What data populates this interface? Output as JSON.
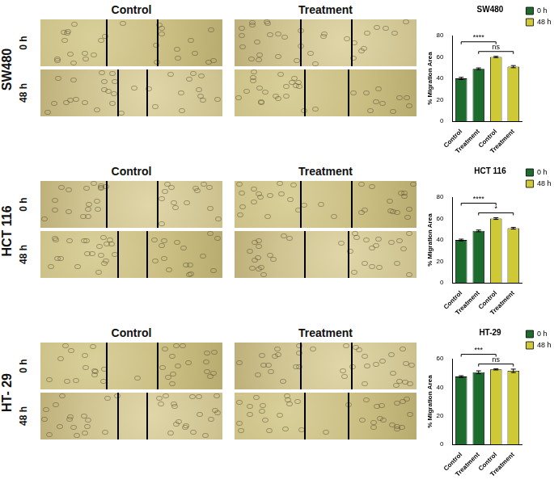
{
  "figure": {
    "panels": [
      {
        "label": "SW480",
        "columns": [
          "Control",
          "Treatment"
        ],
        "rows": [
          "0 h",
          "48 h"
        ]
      },
      {
        "label": "HCT 116",
        "columns": [
          "Control",
          "Treatment"
        ],
        "rows": [
          "0 h",
          "48 h"
        ]
      },
      {
        "label": "HT- 29",
        "columns": [
          "Control",
          "Treatment"
        ],
        "rows": [
          "0 h",
          "48 h"
        ]
      }
    ]
  },
  "chart_data": [
    {
      "type": "bar",
      "title": "SW480",
      "y_label": "% Migration Area",
      "categories": [
        "Control",
        "Treatment",
        "Control",
        "Treatment"
      ],
      "series": [
        {
          "name": "0 h",
          "color": "#1e6b2e",
          "values": [
            40,
            49,
            null,
            null
          ],
          "errors": [
            1,
            0.8,
            null,
            null
          ]
        },
        {
          "name": "48 h",
          "color": "#cfc936",
          "values": [
            null,
            null,
            60,
            51
          ],
          "errors": [
            null,
            null,
            0.6,
            1
          ]
        }
      ],
      "comparisons": [
        {
          "from": 0,
          "to": 2,
          "label": "****"
        },
        {
          "from": 1,
          "to": 3,
          "label": "ns"
        }
      ],
      "ylim": [
        0,
        80
      ],
      "yticks": [
        0,
        20,
        40,
        60,
        80
      ],
      "grid": false,
      "legend": "right"
    },
    {
      "type": "bar",
      "title": "HCT 116",
      "y_label": "% Migration Area",
      "categories": [
        "Control",
        "Treatment",
        "Control",
        "Treatment"
      ],
      "series": [
        {
          "name": "0 h",
          "color": "#1e6b2e",
          "values": [
            40,
            48.5,
            null,
            null
          ],
          "errors": [
            0.8,
            0.8,
            null,
            null
          ]
        },
        {
          "name": "48 h",
          "color": "#cfc936",
          "values": [
            null,
            null,
            60,
            51
          ],
          "errors": [
            null,
            null,
            0.8,
            0.8
          ]
        }
      ],
      "comparisons": [
        {
          "from": 0,
          "to": 2,
          "label": "****"
        },
        {
          "from": 1,
          "to": 3,
          "label": "*"
        }
      ],
      "ylim": [
        0,
        80
      ],
      "yticks": [
        0,
        20,
        40,
        60,
        80
      ],
      "grid": false,
      "legend": "right"
    },
    {
      "type": "bar",
      "title": "HT-29",
      "y_label": "% Migration Area",
      "categories": [
        "Control",
        "Treatment",
        "Control",
        "Treatment"
      ],
      "series": [
        {
          "name": "0 h",
          "color": "#1e6b2e",
          "values": [
            47.5,
            50.5,
            null,
            null
          ],
          "errors": [
            0.6,
            1,
            null,
            null
          ]
        },
        {
          "name": "48 h",
          "color": "#cfc936",
          "values": [
            null,
            null,
            52.5,
            51.5
          ],
          "errors": [
            null,
            null,
            0.4,
            1.2
          ]
        }
      ],
      "comparisons": [
        {
          "from": 0,
          "to": 2,
          "label": "***"
        },
        {
          "from": 1,
          "to": 3,
          "label": "ns"
        }
      ],
      "ylim": [
        0,
        60
      ],
      "yticks": [
        0,
        20,
        40,
        60
      ],
      "grid": false,
      "legend": "right"
    }
  ]
}
